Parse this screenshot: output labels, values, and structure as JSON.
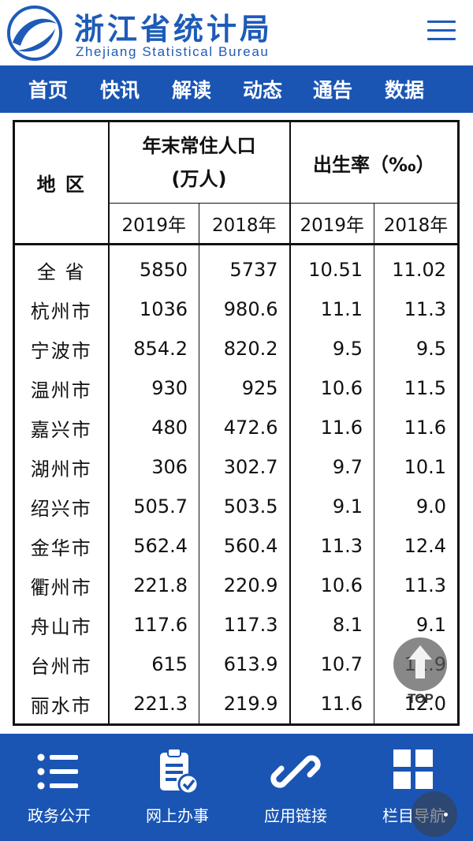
{
  "header": {
    "title_cn": "浙江省统计局",
    "title_en": "Zhejiang Statistical Bureau",
    "logo_icon": "bureau-logo-icon",
    "menu_icon": "hamburger-menu-icon"
  },
  "nav": {
    "items": [
      "首页",
      "快讯",
      "解读",
      "动态",
      "通告",
      "数据"
    ]
  },
  "table": {
    "region_header": "地 区",
    "pop_header_line1": "年末常住人口",
    "pop_header_line2": "(万人)",
    "birth_header": "出生率（‰）",
    "years": [
      "2019年",
      "2018年",
      "2019年",
      "2018年"
    ],
    "rows": [
      {
        "region": "全 省",
        "pop2019": "5850",
        "pop2018": "5737",
        "br2019": "10.51",
        "br2018": "11.02"
      },
      {
        "region": "杭州市",
        "pop2019": "1036",
        "pop2018": "980.6",
        "br2019": "11.1",
        "br2018": "11.3"
      },
      {
        "region": "宁波市",
        "pop2019": "854.2",
        "pop2018": "820.2",
        "br2019": "9.5",
        "br2018": "9.5"
      },
      {
        "region": "温州市",
        "pop2019": "930",
        "pop2018": "925",
        "br2019": "10.6",
        "br2018": "11.5"
      },
      {
        "region": "嘉兴市",
        "pop2019": "480",
        "pop2018": "472.6",
        "br2019": "11.6",
        "br2018": "11.6"
      },
      {
        "region": "湖州市",
        "pop2019": "306",
        "pop2018": "302.7",
        "br2019": "9.7",
        "br2018": "10.1"
      },
      {
        "region": "绍兴市",
        "pop2019": "505.7",
        "pop2018": "503.5",
        "br2019": "9.1",
        "br2018": "9.0"
      },
      {
        "region": "金华市",
        "pop2019": "562.4",
        "pop2018": "560.4",
        "br2019": "11.3",
        "br2018": "12.4"
      },
      {
        "region": "衢州市",
        "pop2019": "221.8",
        "pop2018": "220.9",
        "br2019": "10.6",
        "br2018": "11.3"
      },
      {
        "region": "舟山市",
        "pop2019": "117.6",
        "pop2018": "117.3",
        "br2019": "8.1",
        "br2018": "9.1"
      },
      {
        "region": "台州市",
        "pop2019": "615",
        "pop2018": "613.9",
        "br2019": "10.7",
        "br2018": "11.9"
      },
      {
        "region": "丽水市",
        "pop2019": "221.3",
        "pop2018": "219.9",
        "br2019": "11.6",
        "br2018": "12.0"
      }
    ]
  },
  "float": {
    "top_label": "TOP"
  },
  "bottom": {
    "items": [
      {
        "label": "政务公开",
        "icon": "list-icon"
      },
      {
        "label": "网上办事",
        "icon": "clipboard-check-icon"
      },
      {
        "label": "应用链接",
        "icon": "link-icon"
      },
      {
        "label": "栏目导航",
        "icon": "grid-icon"
      }
    ]
  },
  "colors": {
    "brand_blue": "#1a55b4",
    "title_blue": "#1e5bb8"
  }
}
